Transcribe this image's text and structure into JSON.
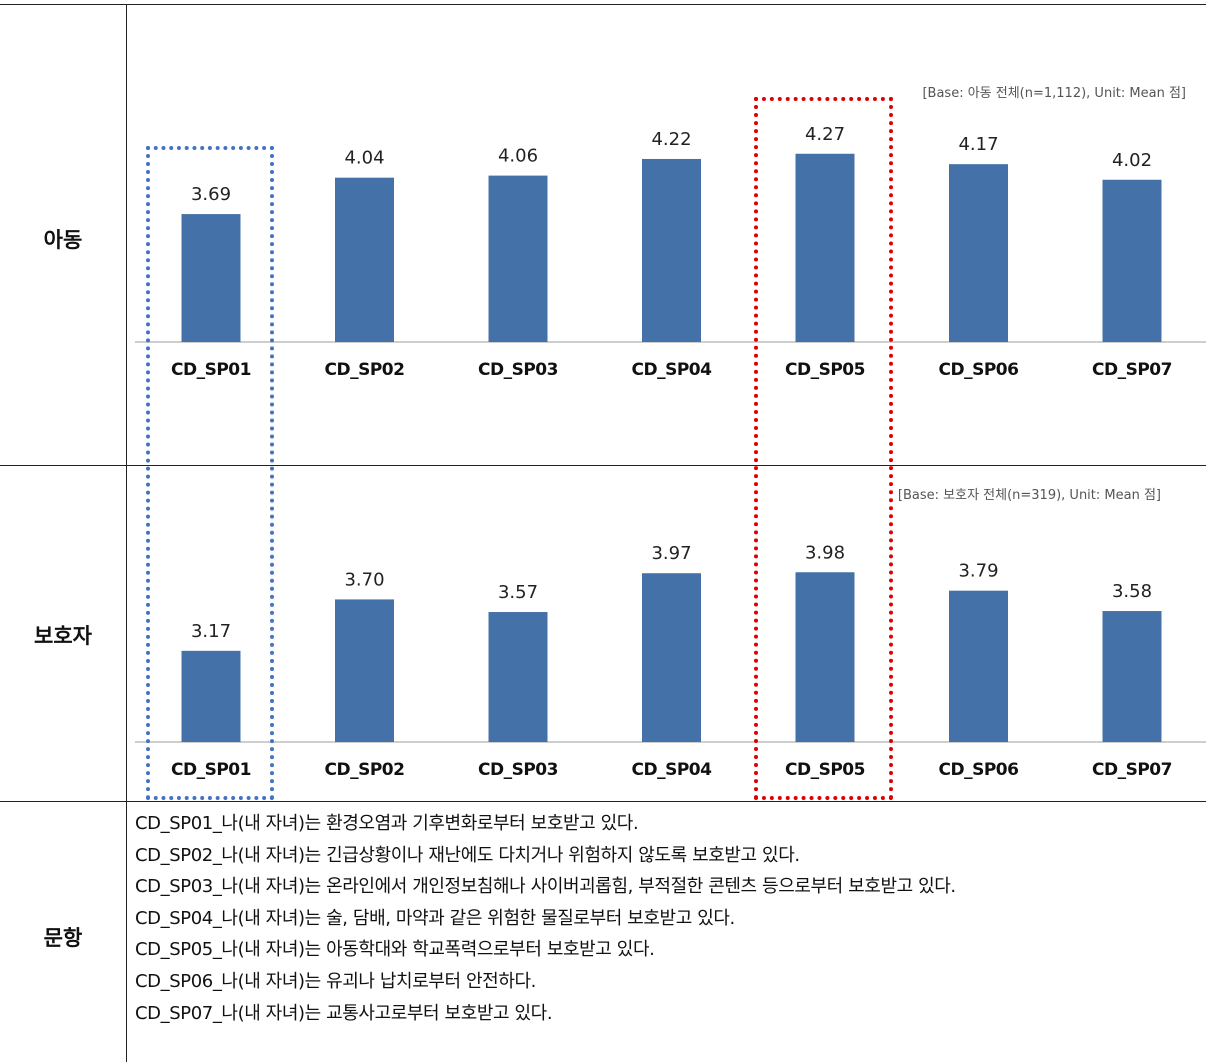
{
  "rows": {
    "child_label": "아동",
    "guardian_label": "보호자",
    "items_label": "문항"
  },
  "chart_data": [
    {
      "type": "bar",
      "note": "[Base: 아동 전체(n=1,112), Unit: Mean 점]",
      "categories": [
        "CD_SP01",
        "CD_SP02",
        "CD_SP03",
        "CD_SP04",
        "CD_SP05",
        "CD_SP06",
        "CD_SP07"
      ],
      "values": [
        3.69,
        4.04,
        4.06,
        4.22,
        4.27,
        4.17,
        4.02
      ],
      "color": "#4472a8"
    },
    {
      "type": "bar",
      "note": "[Base: 보호자 전체(n=319), Unit: Mean 점]",
      "categories": [
        "CD_SP01",
        "CD_SP02",
        "CD_SP03",
        "CD_SP04",
        "CD_SP05",
        "CD_SP06",
        "CD_SP07"
      ],
      "values": [
        3.17,
        3.7,
        3.57,
        3.97,
        3.98,
        3.79,
        3.58
      ],
      "color": "#4472a8"
    }
  ],
  "items": [
    "CD_SP01_나(내 자녀)는 환경오염과 기후변화로부터 보호받고 있다.",
    "CD_SP02_나(내 자녀)는 긴급상황이나 재난에도 다치거나 위험하지 않도록 보호받고 있다.",
    "CD_SP03_나(내 자녀)는 온라인에서 개인정보침해나 사이버괴롭힘, 부적절한 콘텐츠 등으로부터 보호받고 있다.",
    "CD_SP04_나(내 자녀)는 술, 담배, 마약과 같은 위험한 물질로부터 보호받고 있다.",
    "CD_SP05_나(내 자녀)는 아동학대와 학교폭력으로부터 보호받고 있다.",
    "CD_SP06_나(내 자녀)는 유괴나 납치로부터 안전하다.",
    "CD_SP07_나(내 자녀)는 교통사고로부터 보호받고 있다."
  ],
  "highlight_colors": {
    "blue": "#4472c4",
    "red": "#e00000"
  }
}
